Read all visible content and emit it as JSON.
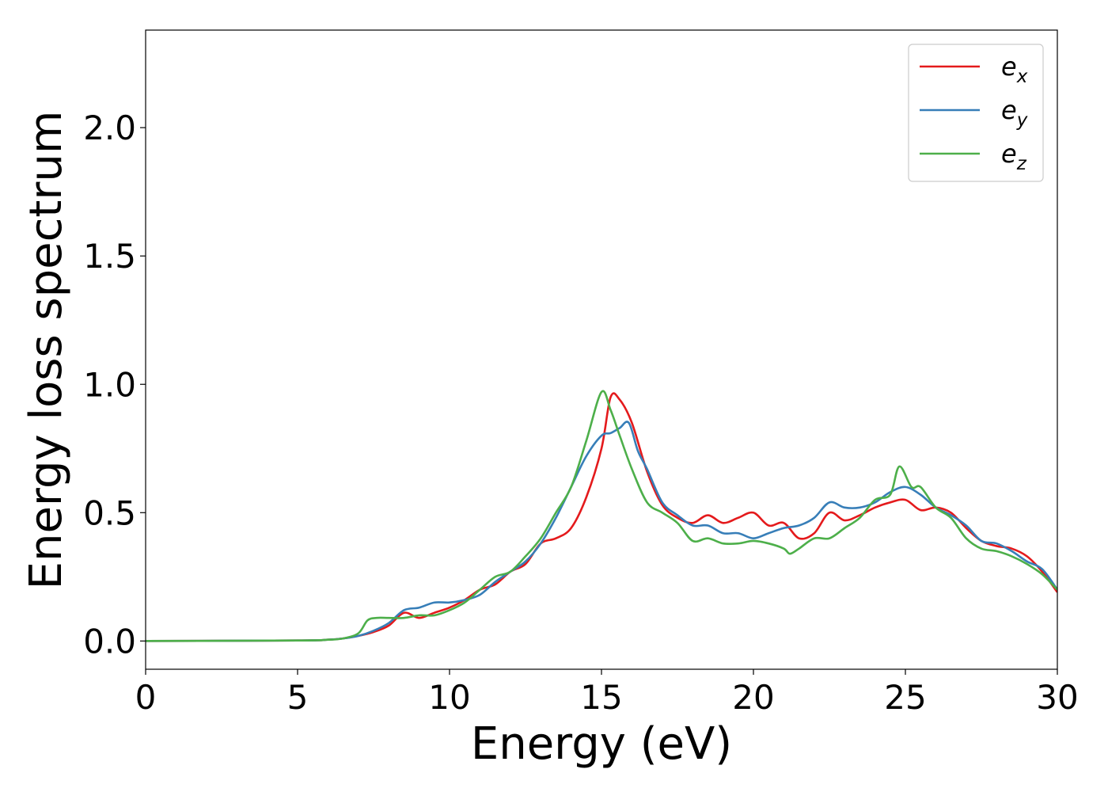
{
  "chart_data": {
    "type": "line",
    "xlabel": "Energy (eV)",
    "ylabel": "Energy loss spectrum",
    "xlim": [
      0,
      30
    ],
    "ylim": [
      -0.11,
      2.38
    ],
    "xticks": [
      0,
      5,
      10,
      15,
      20,
      25,
      30
    ],
    "yticks": [
      0.0,
      0.5,
      1.0,
      1.5,
      2.0
    ],
    "xtick_labels": [
      "0",
      "5",
      "10",
      "15",
      "20",
      "25",
      "30"
    ],
    "ytick_labels": [
      "0.0",
      "0.5",
      "1.0",
      "1.5",
      "2.0"
    ],
    "grid": false,
    "legend_position": "top-right",
    "series": [
      {
        "name": "e",
        "subscript": "x",
        "color": "#e41a1c",
        "x": [
          0,
          5,
          6,
          6.5,
          7,
          7.5,
          8,
          8.5,
          9,
          9.5,
          10,
          10.5,
          11,
          11.5,
          12,
          12.5,
          13,
          13.5,
          14,
          14.5,
          15,
          15.3,
          15.6,
          16,
          16.5,
          17,
          17.5,
          18,
          18.5,
          19,
          19.5,
          20,
          20.5,
          21,
          21.5,
          22,
          22.5,
          23,
          23.5,
          24,
          24.5,
          25,
          25.5,
          26,
          26.5,
          27,
          27.5,
          28,
          28.5,
          29,
          29.5,
          30
        ],
        "y": [
          0.0,
          0.002,
          0.005,
          0.01,
          0.02,
          0.035,
          0.06,
          0.11,
          0.09,
          0.11,
          0.13,
          0.16,
          0.2,
          0.22,
          0.27,
          0.3,
          0.38,
          0.4,
          0.44,
          0.56,
          0.75,
          0.95,
          0.94,
          0.85,
          0.66,
          0.53,
          0.48,
          0.46,
          0.49,
          0.46,
          0.48,
          0.5,
          0.45,
          0.46,
          0.4,
          0.42,
          0.5,
          0.47,
          0.49,
          0.52,
          0.54,
          0.55,
          0.51,
          0.52,
          0.5,
          0.44,
          0.39,
          0.37,
          0.36,
          0.33,
          0.27,
          0.19
        ]
      },
      {
        "name": "e",
        "subscript": "y",
        "color": "#377eb8",
        "x": [
          0,
          5,
          6,
          6.5,
          7,
          7.5,
          8,
          8.5,
          9,
          9.5,
          10,
          10.5,
          11,
          11.5,
          12,
          12.5,
          13,
          13.5,
          14,
          14.5,
          15,
          15.3,
          15.6,
          15.9,
          16.2,
          16.5,
          17,
          17.5,
          18,
          18.5,
          19,
          19.5,
          20,
          20.5,
          21,
          21.5,
          22,
          22.5,
          23,
          23.5,
          24,
          24.5,
          25,
          25.5,
          26,
          26.5,
          27,
          27.5,
          28,
          28.5,
          29,
          29.5,
          30
        ],
        "y": [
          0.0,
          0.002,
          0.005,
          0.01,
          0.02,
          0.04,
          0.07,
          0.12,
          0.13,
          0.15,
          0.15,
          0.16,
          0.18,
          0.23,
          0.27,
          0.31,
          0.38,
          0.48,
          0.6,
          0.72,
          0.8,
          0.81,
          0.83,
          0.85,
          0.74,
          0.67,
          0.54,
          0.49,
          0.45,
          0.45,
          0.42,
          0.42,
          0.4,
          0.42,
          0.44,
          0.45,
          0.48,
          0.54,
          0.52,
          0.52,
          0.54,
          0.58,
          0.6,
          0.57,
          0.52,
          0.49,
          0.45,
          0.39,
          0.38,
          0.35,
          0.31,
          0.28,
          0.2
        ]
      },
      {
        "name": "e",
        "subscript": "z",
        "color": "#4daf4a",
        "x": [
          0,
          5,
          6,
          6.5,
          7,
          7.3,
          7.6,
          8,
          8.5,
          9,
          9.5,
          10,
          10.5,
          11,
          11.5,
          12,
          12.5,
          13,
          13.5,
          14,
          14.5,
          15,
          15.3,
          15.6,
          16,
          16.5,
          17,
          17.5,
          18,
          18.5,
          19,
          19.5,
          20,
          20.5,
          21,
          21.2,
          21.5,
          22,
          22.5,
          23,
          23.5,
          24,
          24.5,
          24.8,
          25.2,
          25.5,
          26,
          26.5,
          27,
          27.5,
          28,
          28.5,
          29,
          29.5,
          30
        ],
        "y": [
          0.0,
          0.002,
          0.005,
          0.01,
          0.03,
          0.08,
          0.09,
          0.09,
          0.09,
          0.1,
          0.1,
          0.12,
          0.15,
          0.2,
          0.25,
          0.27,
          0.33,
          0.4,
          0.5,
          0.6,
          0.78,
          0.97,
          0.9,
          0.8,
          0.67,
          0.54,
          0.5,
          0.46,
          0.39,
          0.4,
          0.38,
          0.38,
          0.39,
          0.38,
          0.36,
          0.34,
          0.36,
          0.4,
          0.4,
          0.44,
          0.48,
          0.55,
          0.57,
          0.68,
          0.6,
          0.6,
          0.52,
          0.48,
          0.4,
          0.36,
          0.35,
          0.33,
          0.3,
          0.26,
          0.2
        ]
      }
    ]
  }
}
